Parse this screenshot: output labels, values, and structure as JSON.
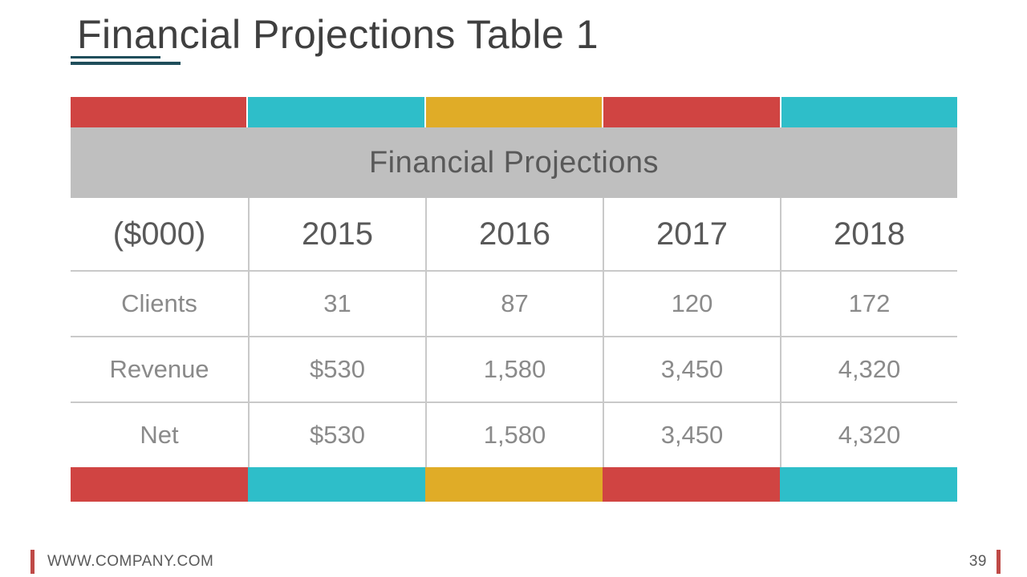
{
  "slide": {
    "title": "Financial Projections Table 1",
    "footer": {
      "website": "WWW.COMPANY.COM",
      "page_number": "39"
    }
  },
  "table": {
    "merged_header": "Financial Projections",
    "columns": [
      "($000)",
      "2015",
      "2016",
      "2017",
      "2018"
    ],
    "rows": [
      {
        "label": "Clients",
        "values": [
          "31",
          "87",
          "120",
          "172"
        ]
      },
      {
        "label": "Revenue",
        "values": [
          "$530",
          "1,580",
          "3,450",
          "4,320"
        ]
      },
      {
        "label": "Net",
        "values": [
          "$530",
          "1,580",
          "3,450",
          "4,320"
        ]
      }
    ],
    "accent_colors": [
      "#D04442",
      "#2EBEC9",
      "#E0AC27",
      "#D04442",
      "#2EBEC9"
    ]
  },
  "colors": {
    "title_text": "#3F3F3F",
    "title_underline": "#1F4E5B",
    "header_band": "#BFBFBF",
    "header_text": "#595959",
    "data_text": "#8A8A8A",
    "grid_line": "#C9C9C9",
    "footer_accent": "#BF4A47",
    "footer_text": "#595959"
  }
}
